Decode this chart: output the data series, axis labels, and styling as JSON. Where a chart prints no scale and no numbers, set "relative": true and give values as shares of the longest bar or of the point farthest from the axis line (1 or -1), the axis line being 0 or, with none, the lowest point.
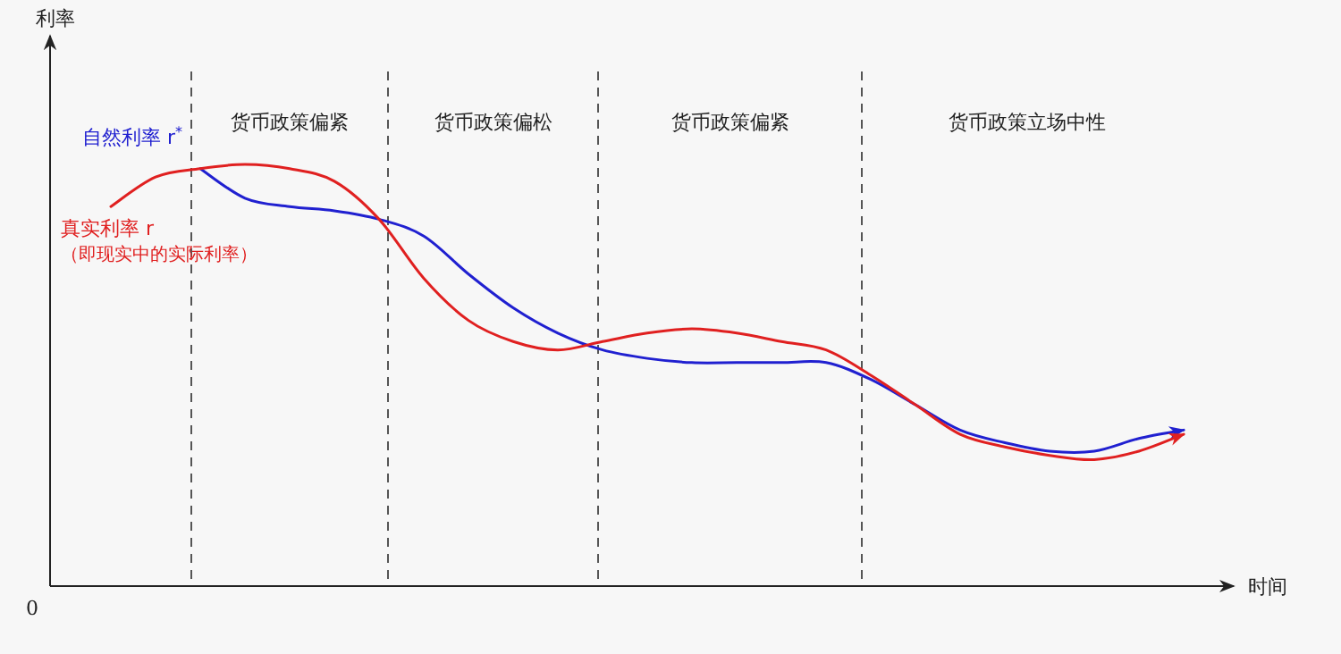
{
  "chart_data": {
    "type": "line",
    "relative": true,
    "xlabel": "时间",
    "categories": [
      null,
      null,
      null,
      null,
      null,
      null,
      null,
      null,
      null,
      null,
      null,
      null,
      null,
      null,
      null,
      null,
      null,
      null,
      null,
      null,
      null,
      null,
      null,
      null,
      null
    ],
    "series": [
      {
        "name": "自然利率 r$^{*}$",
        "color": "#2020d0",
        "values": [
          null,
          null,
          0.99,
          0.92,
          0.9,
          0.89,
          0.87,
          0.83,
          0.74,
          0.66,
          0.6,
          0.56,
          0.54,
          0.53,
          0.53,
          0.53,
          0.53,
          0.49,
          0.43,
          0.37,
          0.34,
          0.32,
          0.32,
          0.35,
          0.37
        ]
      },
      {
        "name": "真实利率 r",
        "color": "#e02020",
        "values": [
          0.9,
          0.97,
          0.99,
          1,
          0.99,
          0.96,
          0.87,
          0.73,
          0.63,
          0.58,
          0.56,
          0.58,
          0.6,
          0.61,
          0.6,
          0.58,
          0.56,
          0.5,
          0.43,
          0.36,
          0.33,
          0.31,
          0.3,
          0.32,
          0.36
        ]
      }
    ],
    "annotations": [
      "（即现实中的实际利率）",
      "0",
      "利率",
      "货币政策偏紧",
      "货币政策偏松",
      "货币政策偏紧",
      "货币政策立场中性"
    ]
  }
}
